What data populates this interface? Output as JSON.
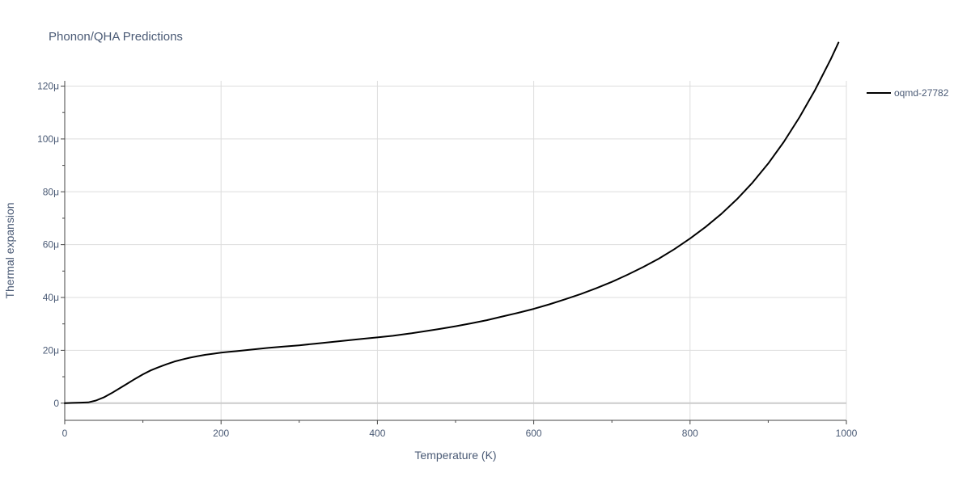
{
  "chart_data": {
    "type": "line",
    "title": "Phonon/QHA Predictions",
    "xlabel": "Temperature (K)",
    "ylabel": "Thermal expansion",
    "xlim": [
      0,
      1000
    ],
    "ylim": [
      -6.5e-06,
      0.000122
    ],
    "x_ticks": [
      0,
      200,
      400,
      600,
      800,
      1000
    ],
    "x_tick_labels": [
      "0",
      "200",
      "400",
      "600",
      "800",
      "1000"
    ],
    "y_ticks": [
      0,
      2e-05,
      4e-05,
      6e-05,
      8e-05,
      0.0001,
      0.00012
    ],
    "y_tick_labels": [
      "0",
      "20μ",
      "40μ",
      "60μ",
      "80μ",
      "100μ",
      "120μ"
    ],
    "grid": true,
    "legend_position": "top-right",
    "series": [
      {
        "name": "oqmd-27782",
        "color": "#000000",
        "x": [
          0,
          10,
          20,
          30,
          40,
          50,
          60,
          70,
          80,
          90,
          100,
          110,
          120,
          130,
          140,
          150,
          160,
          170,
          180,
          190,
          200,
          210,
          220,
          240,
          260,
          280,
          300,
          320,
          340,
          360,
          380,
          400,
          420,
          440,
          460,
          480,
          500,
          520,
          540,
          560,
          580,
          600,
          620,
          640,
          660,
          680,
          700,
          720,
          740,
          760,
          780,
          800,
          820,
          840,
          860,
          880,
          900,
          920,
          940,
          960,
          980,
          990
        ],
        "y": [
          0,
          1e-07,
          2e-07,
          3e-07,
          1e-06,
          2.2e-06,
          3.8e-06,
          5.6e-06,
          7.4e-06,
          9.2e-06,
          1.09e-05,
          1.24e-05,
          1.36e-05,
          1.47e-05,
          1.57e-05,
          1.65e-05,
          1.72e-05,
          1.78e-05,
          1.83e-05,
          1.87e-05,
          1.91e-05,
          1.94e-05,
          1.97e-05,
          2.03e-05,
          2.09e-05,
          2.14e-05,
          2.19e-05,
          2.25e-05,
          2.31e-05,
          2.37e-05,
          2.43e-05,
          2.49e-05,
          2.55e-05,
          2.63e-05,
          2.72e-05,
          2.81e-05,
          2.91e-05,
          3.02e-05,
          3.14e-05,
          3.28e-05,
          3.42e-05,
          3.57e-05,
          3.74e-05,
          3.93e-05,
          4.13e-05,
          4.35e-05,
          4.59e-05,
          4.86e-05,
          5.15e-05,
          5.47e-05,
          5.83e-05,
          6.23e-05,
          6.67e-05,
          7.16e-05,
          7.72e-05,
          8.35e-05,
          9.07e-05,
          9.89e-05,
          0.0001082,
          0.0001186,
          0.0001302,
          0.0001365
        ]
      }
    ]
  }
}
